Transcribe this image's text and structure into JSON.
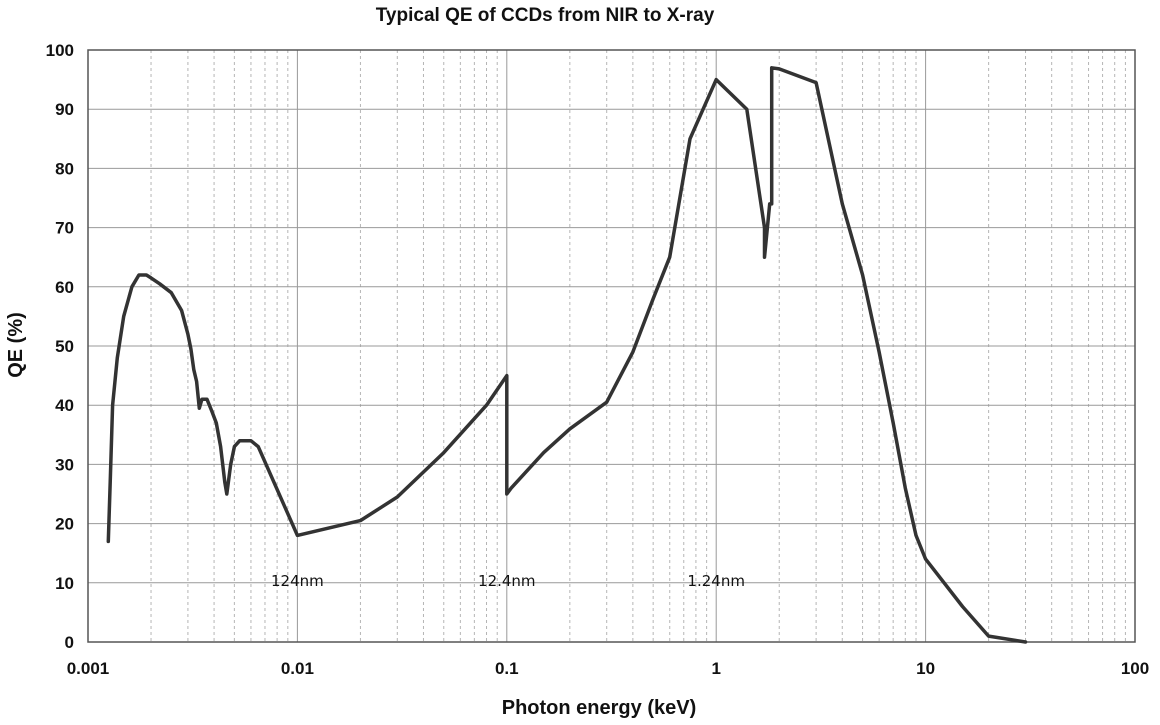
{
  "chart_data": {
    "type": "line",
    "title": "Typical QE of CCDs from NIR to X-ray",
    "xlabel": "Photon energy (keV)",
    "ylabel": "QE (%)",
    "xscale": "log",
    "xlim": [
      0.001,
      100
    ],
    "ylim": [
      0,
      100
    ],
    "grid": true,
    "legend": "none",
    "line_color": "#333333",
    "x_tick_labels": [
      "0.001",
      "0.01",
      "0.1",
      "1",
      "10",
      "100"
    ],
    "y_tick_labels": [
      "0",
      "10",
      "20",
      "30",
      "40",
      "50",
      "60",
      "70",
      "80",
      "90",
      "100"
    ],
    "annotations": [
      {
        "text": "124nm",
        "x": 0.01,
        "y": 10.5
      },
      {
        "text": "12.4nm",
        "x": 0.1,
        "y": 10.5
      },
      {
        "text": "1.24nm",
        "x": 1.0,
        "y": 10.5
      }
    ],
    "series": [
      {
        "x": [
          0.00125,
          0.00128,
          0.00131,
          0.00138,
          0.00148,
          0.00162,
          0.00175,
          0.0019,
          0.002,
          0.0022,
          0.0025,
          0.0028,
          0.003,
          0.0031,
          0.0032,
          0.0033,
          0.0034,
          0.0035,
          0.0037,
          0.0039,
          0.0041,
          0.0043,
          0.0045,
          0.0046,
          0.0048,
          0.005,
          0.0053,
          0.0057,
          0.006,
          0.0065,
          0.01,
          0.02,
          0.03,
          0.05,
          0.08,
          0.1,
          0.1,
          0.105,
          0.15,
          0.2,
          0.3,
          0.4,
          0.5,
          0.6,
          0.75,
          1.0,
          1.4,
          1.7,
          1.7,
          1.8,
          1.84,
          1.84,
          2.0,
          3.0,
          4.0,
          5.0,
          6.0,
          7.0,
          8.0,
          9.0,
          10.0,
          15.0,
          20.0,
          30.0
        ],
        "y": [
          17,
          28,
          40,
          48,
          55,
          60,
          62,
          62,
          61.5,
          60.5,
          59,
          56,
          52,
          49.5,
          46,
          44,
          39.5,
          41,
          41,
          39,
          37,
          33,
          27,
          25,
          30,
          33,
          34,
          34,
          34,
          33,
          18,
          20.5,
          24.5,
          32,
          40,
          45,
          25,
          26,
          32,
          36,
          40.5,
          49,
          58,
          65,
          85,
          95,
          90,
          70,
          65,
          74,
          74,
          97,
          96.8,
          94.5,
          74,
          62,
          49,
          37,
          26,
          18,
          14,
          6,
          1,
          0
        ]
      }
    ]
  }
}
